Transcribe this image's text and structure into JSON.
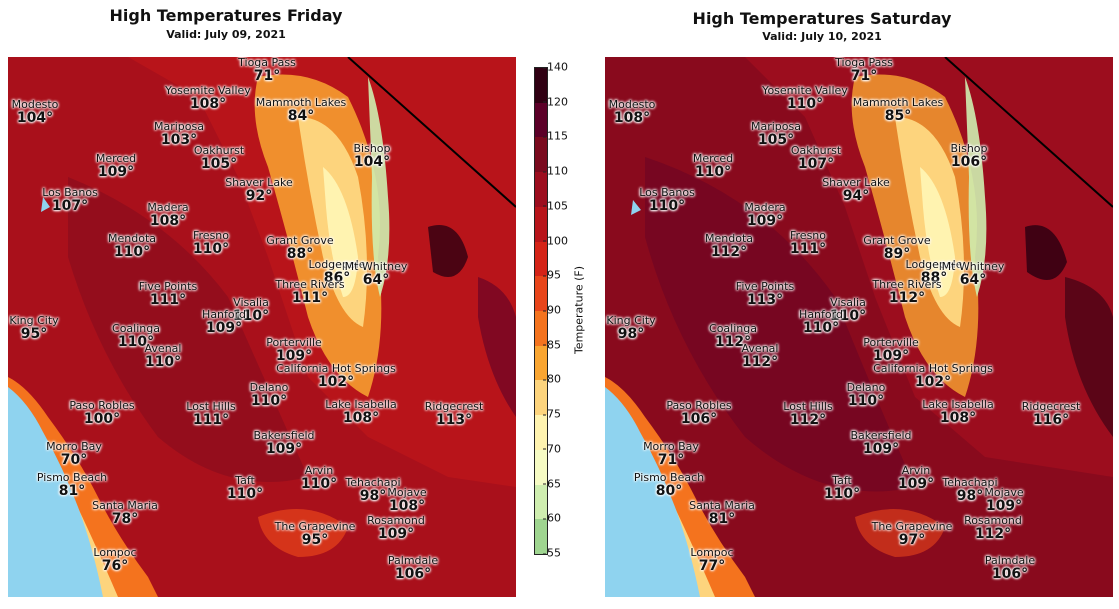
{
  "panels": [
    {
      "title": "High Temperatures Friday",
      "valid": "Valid: July 09, 2021",
      "cities": [
        {
          "name": "Tioga Pass",
          "temp": "71°"
        },
        {
          "name": "Yosemite Valley",
          "temp": "108°"
        },
        {
          "name": "Mammoth Lakes",
          "temp": "84°"
        },
        {
          "name": "Modesto",
          "temp": "104°"
        },
        {
          "name": "Mariposa",
          "temp": "103°"
        },
        {
          "name": "Bishop",
          "temp": "104°"
        },
        {
          "name": "Merced",
          "temp": "109°"
        },
        {
          "name": "Oakhurst",
          "temp": "105°"
        },
        {
          "name": "Shaver Lake",
          "temp": "92°"
        },
        {
          "name": "Los Banos",
          "temp": "107°"
        },
        {
          "name": "Madera",
          "temp": "108°"
        },
        {
          "name": "Mendota",
          "temp": "110°"
        },
        {
          "name": "Fresno",
          "temp": "110°"
        },
        {
          "name": "Grant Grove",
          "temp": "88°"
        },
        {
          "name": "Lodgepole",
          "temp": "86°"
        },
        {
          "name": "Mt Whitney",
          "temp": "64°"
        },
        {
          "name": "Five Points",
          "temp": "111°"
        },
        {
          "name": "Three Rivers",
          "temp": "111°"
        },
        {
          "name": "King City",
          "temp": "95°"
        },
        {
          "name": "Visalia",
          "temp": "110°"
        },
        {
          "name": "Hanford",
          "temp": "109°"
        },
        {
          "name": "Coalinga",
          "temp": "110°"
        },
        {
          "name": "Avenal",
          "temp": "110°"
        },
        {
          "name": "Porterville",
          "temp": "109°"
        },
        {
          "name": "California Hot Springs",
          "temp": "102°"
        },
        {
          "name": "Delano",
          "temp": "110°"
        },
        {
          "name": "Paso Robles",
          "temp": "100°"
        },
        {
          "name": "Lost Hills",
          "temp": "111°"
        },
        {
          "name": "Lake Isabella",
          "temp": "108°"
        },
        {
          "name": "Ridgecrest",
          "temp": "113°"
        },
        {
          "name": "Bakersfield",
          "temp": "109°"
        },
        {
          "name": "Morro Bay",
          "temp": "70°"
        },
        {
          "name": "Pismo Beach",
          "temp": "81°"
        },
        {
          "name": "Taft",
          "temp": "110°"
        },
        {
          "name": "Arvin",
          "temp": "110°"
        },
        {
          "name": "Tehachapi",
          "temp": "98°"
        },
        {
          "name": "Mojave",
          "temp": "108°"
        },
        {
          "name": "Santa Maria",
          "temp": "78°"
        },
        {
          "name": "Rosamond",
          "temp": "109°"
        },
        {
          "name": "The Grapevine",
          "temp": "95°"
        },
        {
          "name": "Lompoc",
          "temp": "76°"
        },
        {
          "name": "Palmdale",
          "temp": "106°"
        }
      ]
    },
    {
      "title": "High Temperatures Saturday",
      "valid": "Valid: July 10, 2021",
      "cities": [
        {
          "name": "Tioga Pass",
          "temp": "71°"
        },
        {
          "name": "Yosemite Valley",
          "temp": "110°"
        },
        {
          "name": "Mammoth Lakes",
          "temp": "85°"
        },
        {
          "name": "Modesto",
          "temp": "108°"
        },
        {
          "name": "Mariposa",
          "temp": "105°"
        },
        {
          "name": "Bishop",
          "temp": "106°"
        },
        {
          "name": "Merced",
          "temp": "110°"
        },
        {
          "name": "Oakhurst",
          "temp": "107°"
        },
        {
          "name": "Shaver Lake",
          "temp": "94°"
        },
        {
          "name": "Los Banos",
          "temp": "110°"
        },
        {
          "name": "Madera",
          "temp": "109°"
        },
        {
          "name": "Mendota",
          "temp": "112°"
        },
        {
          "name": "Fresno",
          "temp": "111°"
        },
        {
          "name": "Grant Grove",
          "temp": "89°"
        },
        {
          "name": "Lodgepole",
          "temp": "88°"
        },
        {
          "name": "Mt Whitney",
          "temp": "64°"
        },
        {
          "name": "Five Points",
          "temp": "113°"
        },
        {
          "name": "Three Rivers",
          "temp": "112°"
        },
        {
          "name": "King City",
          "temp": "98°"
        },
        {
          "name": "Visalia",
          "temp": "110°"
        },
        {
          "name": "Hanford",
          "temp": "110°"
        },
        {
          "name": "Coalinga",
          "temp": "112°"
        },
        {
          "name": "Avenal",
          "temp": "112°"
        },
        {
          "name": "Porterville",
          "temp": "109°"
        },
        {
          "name": "California Hot Springs",
          "temp": "102°"
        },
        {
          "name": "Delano",
          "temp": "110°"
        },
        {
          "name": "Paso Robles",
          "temp": "106°"
        },
        {
          "name": "Lost Hills",
          "temp": "112°"
        },
        {
          "name": "Lake Isabella",
          "temp": "108°"
        },
        {
          "name": "Ridgecrest",
          "temp": "116°"
        },
        {
          "name": "Bakersfield",
          "temp": "109°"
        },
        {
          "name": "Morro Bay",
          "temp": "71°"
        },
        {
          "name": "Pismo Beach",
          "temp": "80°"
        },
        {
          "name": "Taft",
          "temp": "110°"
        },
        {
          "name": "Arvin",
          "temp": "109°"
        },
        {
          "name": "Tehachapi",
          "temp": "98°"
        },
        {
          "name": "Mojave",
          "temp": "109°"
        },
        {
          "name": "Santa Maria",
          "temp": "81°"
        },
        {
          "name": "Rosamond",
          "temp": "112°"
        },
        {
          "name": "The Grapevine",
          "temp": "97°"
        },
        {
          "name": "Lompoc",
          "temp": "77°"
        },
        {
          "name": "Palmdale",
          "temp": "106°"
        }
      ]
    }
  ],
  "colorbar": {
    "label": "Temperature (F)",
    "ticks": [
      "140",
      "120",
      "115",
      "110",
      "105",
      "100",
      "95",
      "90",
      "85",
      "80",
      "75",
      "70",
      "65",
      "60",
      "55"
    ],
    "colors": [
      "#300012",
      "#5c0028",
      "#7a0a1e",
      "#9c0d1e",
      "#b8141a",
      "#d42317",
      "#e8451a",
      "#f4731e",
      "#f9a531",
      "#fdd47d",
      "#fff3b0",
      "#f6fbc4",
      "#cfeeb0",
      "#9fd590",
      "#6cbd6e"
    ]
  },
  "colors": {
    "ocean": "#8fd3ef",
    "hot_background": "#b8141a"
  }
}
